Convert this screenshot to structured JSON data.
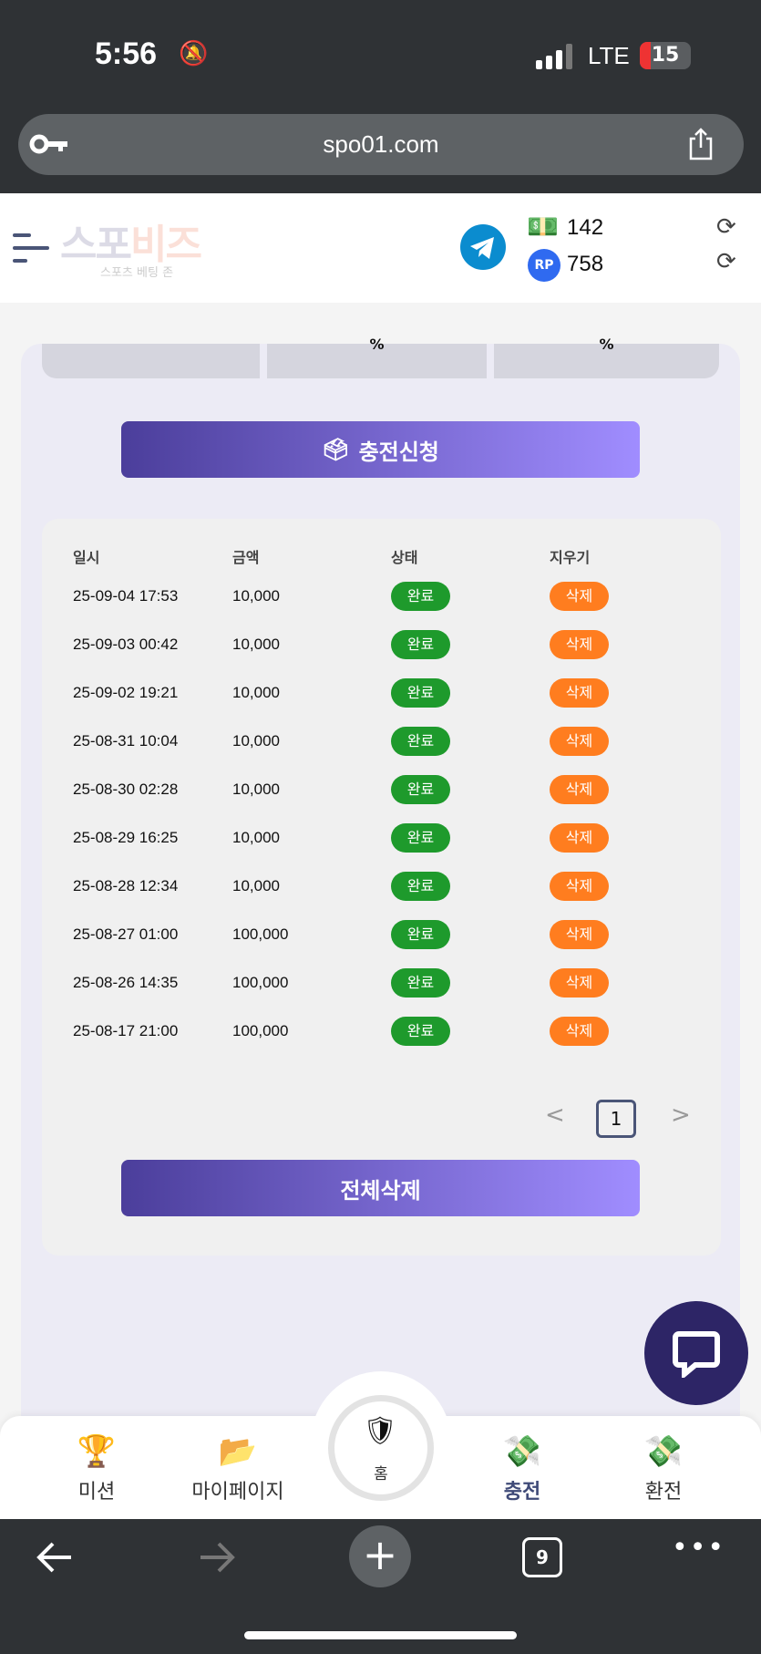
{
  "status_bar": {
    "time": "5:56",
    "network": "LTE",
    "battery": "15"
  },
  "browser": {
    "url": "spo01.com",
    "tab_count": "9"
  },
  "header": {
    "logo_part1": "스포",
    "logo_part2": "비즈",
    "logo_subtitle": "스포츠 베팅 존",
    "money_balance": "142",
    "rp_balance": "758"
  },
  "summary_cells": [
    "",
    "%",
    "%"
  ],
  "charge_request_label": "충전신청",
  "table": {
    "columns": [
      "일시",
      "금액",
      "상태",
      "지우기"
    ],
    "rows": [
      {
        "date": "25-09-04 17:53",
        "amount": "10,000",
        "status": "완료",
        "action": "삭제"
      },
      {
        "date": "25-09-03 00:42",
        "amount": "10,000",
        "status": "완료",
        "action": "삭제"
      },
      {
        "date": "25-09-02 19:21",
        "amount": "10,000",
        "status": "완료",
        "action": "삭제"
      },
      {
        "date": "25-08-31 10:04",
        "amount": "10,000",
        "status": "완료",
        "action": "삭제"
      },
      {
        "date": "25-08-30 02:28",
        "amount": "10,000",
        "status": "완료",
        "action": "삭제"
      },
      {
        "date": "25-08-29 16:25",
        "amount": "10,000",
        "status": "완료",
        "action": "삭제"
      },
      {
        "date": "25-08-28 12:34",
        "amount": "10,000",
        "status": "완료",
        "action": "삭제"
      },
      {
        "date": "25-08-27 01:00",
        "amount": "100,000",
        "status": "완료",
        "action": "삭제"
      },
      {
        "date": "25-08-26 14:35",
        "amount": "100,000",
        "status": "완료",
        "action": "삭제"
      },
      {
        "date": "25-08-17 21:00",
        "amount": "100,000",
        "status": "완료",
        "action": "삭제"
      }
    ]
  },
  "pagination": {
    "current": "1",
    "prev": "<",
    "next": ">"
  },
  "delete_all_label": "전체삭제",
  "bottom_nav": [
    {
      "label": "미션",
      "icon": "trophy-icon"
    },
    {
      "label": "마이페이지",
      "icon": "folder-icon"
    },
    {
      "label": "홈",
      "icon": "home-emblem-icon"
    },
    {
      "label": "충전",
      "icon": "deposit-icon"
    },
    {
      "label": "환전",
      "icon": "withdraw-icon"
    }
  ],
  "colors": {
    "complete": "#1e9a2c",
    "delete": "#ff7d1f",
    "accent": "#4b3e9b",
    "chat": "#2d2566"
  }
}
